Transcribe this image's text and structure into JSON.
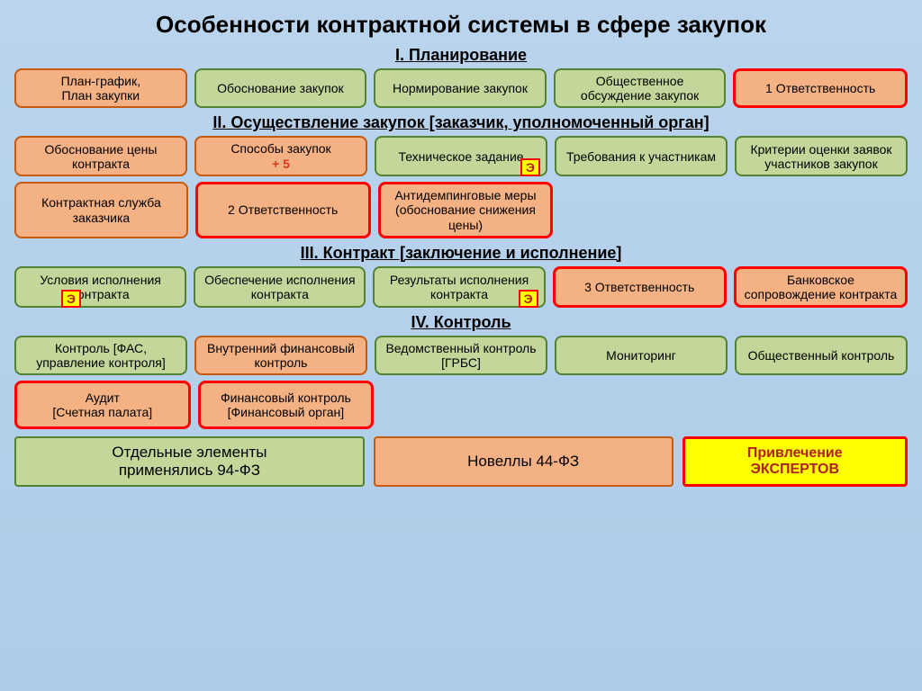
{
  "title": "Особенности контрактной системы в сфере закупок",
  "sections": {
    "s1": {
      "header": "I. Планирование",
      "row1": [
        {
          "text": "План-график,\nПлан закупки",
          "cls": "orange"
        },
        {
          "text": "Обоснование закупок",
          "cls": "green"
        },
        {
          "text": "Нормирование закупок",
          "cls": "green"
        },
        {
          "text": "Общественное обсуждение закупок",
          "cls": "green"
        },
        {
          "text": "1 Ответственность",
          "cls": "orange red-border"
        }
      ]
    },
    "s2": {
      "header": "II. Осуществление закупок [заказчик, уполномоченный орган]",
      "row1": [
        {
          "text": "Обоснование цены контракта",
          "cls": "orange"
        },
        {
          "text": "Способы закупок",
          "sub": "+ 5",
          "cls": "orange"
        },
        {
          "text": "Техническое задание",
          "cls": "green",
          "tag": "right"
        },
        {
          "text": "Требования к участникам",
          "cls": "green"
        },
        {
          "text": "Критерии оценки заявок участников закупок",
          "cls": "green"
        }
      ],
      "row2": [
        {
          "text": "Контрактная служба заказчика",
          "cls": "orange"
        },
        {
          "text": "2 Ответственность",
          "cls": "orange red-border"
        },
        {
          "text": "Антидемпинговые меры (обоснование снижения цены)",
          "cls": "orange red-border"
        }
      ]
    },
    "s3": {
      "header": "III. Контракт [заключение и исполнение]",
      "row1": [
        {
          "text": "Условия исполнения контракта",
          "cls": "green",
          "tag": "left"
        },
        {
          "text": "Обеспечение исполнения контракта",
          "cls": "green"
        },
        {
          "text": "Результаты исполнения контракта",
          "cls": "green",
          "tag": "right"
        },
        {
          "text": "3 Ответственность",
          "cls": "orange red-border"
        },
        {
          "text": "Банковское сопровождение контракта",
          "cls": "orange red-border"
        }
      ]
    },
    "s4": {
      "header": "IV. Контроль",
      "row1": [
        {
          "text": "Контроль  [ФАС, управление контроля]",
          "cls": "green"
        },
        {
          "text": "Внутренний финансовый контроль",
          "cls": "orange"
        },
        {
          "text": "Ведомственный контроль  [ГРБС]",
          "cls": "green"
        },
        {
          "text": "Мониторинг",
          "cls": "green"
        },
        {
          "text": "Общественный контроль",
          "cls": "green"
        }
      ],
      "row2": [
        {
          "text": "Аудит\n[Счетная палата]",
          "cls": "orange red-border"
        },
        {
          "text": "Финансовый контроль\n[Финансовый орган]",
          "cls": "orange red-border"
        }
      ]
    }
  },
  "legend": {
    "green": "Отдельные элементы\nприменялись 94-ФЗ",
    "orange": "Новеллы 44-ФЗ",
    "yellow": "Привлечение\nЭКСПЕРТОВ"
  },
  "tag_label": "Э",
  "colors": {
    "bg_top": "#bad4ed",
    "bg_bottom": "#aecce8",
    "green_fill": "#c4d79b",
    "green_border": "#548235",
    "orange_fill": "#f4b183",
    "orange_border": "#c55a11",
    "red": "#ff0000",
    "yellow": "#ffff00",
    "subtext": "#d83c1c"
  }
}
